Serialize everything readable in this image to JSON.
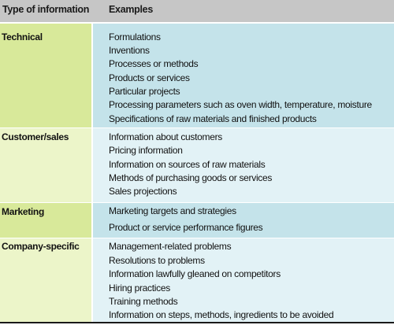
{
  "header": {
    "col1": "Type of information",
    "col2": "Examples"
  },
  "rows": [
    {
      "category": "Technical",
      "items": [
        "Formulations",
        "Inventions",
        "Processes or methods",
        "Products or services",
        "Particular projects",
        "Processing parameters such as oven width, temperature, moisture",
        "Specifications of raw materials and finished products"
      ]
    },
    {
      "category": "Customer/sales",
      "items": [
        "Information about customers",
        "Pricing information",
        "Information on sources of raw materials",
        "Methods of purchasing goods or services",
        "Sales projections"
      ]
    },
    {
      "category": "Marketing",
      "items": [
        "Marketing targets and strategies",
        "Product or service performance figures"
      ]
    },
    {
      "category": "Company-specific",
      "items": [
        "Management-related problems",
        "Resolutions to problems",
        "Information lawfully gleaned on competitors",
        "Hiring practices",
        "Training methods",
        "Information on steps, methods, ingredients to be avoided"
      ]
    }
  ],
  "colors": {
    "header_bg": "#c6c6c6",
    "technical_cat": "#d8e99a",
    "technical_ex": "#c4e3ea",
    "customer_cat": "#ecf5c9",
    "customer_ex": "#e2f2f6",
    "marketing_cat": "#d8e99a",
    "marketing_ex": "#c4e3ea",
    "company_cat": "#ecf5c9",
    "company_ex": "#e2f2f6"
  }
}
